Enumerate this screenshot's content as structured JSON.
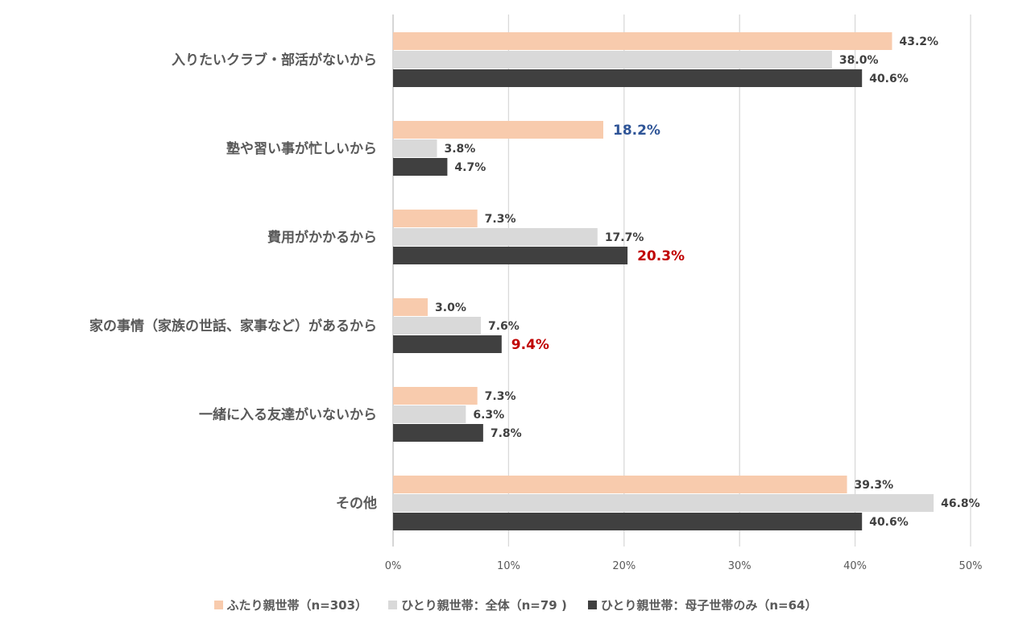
{
  "chart_data": {
    "type": "bar",
    "orientation": "horizontal",
    "categories": [
      "入りたいクラブ・部活がないから",
      "塾や習い事が忙しいから",
      "費用がかかるから",
      "家の事情（家族の世話、家事など）があるから",
      "一緒に入る友達がいないから",
      "その他"
    ],
    "series": [
      {
        "name": "ふたり親世帯（n=303）",
        "color": "#F8CBAD",
        "values": [
          43.2,
          18.2,
          7.3,
          3.0,
          7.3,
          39.3
        ],
        "labels": [
          "43.2%",
          "18.2%",
          "7.3%",
          "3.0%",
          "7.3%",
          "39.3%"
        ]
      },
      {
        "name": "ひとり親世帯：全体（n=79 )",
        "color": "#D9D9D9",
        "values": [
          38.0,
          3.8,
          17.7,
          7.6,
          6.3,
          46.8
        ],
        "labels": [
          "38.0%",
          "3.8%",
          "17.7%",
          "7.6%",
          "6.3%",
          "46.8%"
        ]
      },
      {
        "name": "ひとり親世帯：母子世帯のみ（n=64）",
        "color": "#404040",
        "values": [
          40.6,
          4.7,
          20.3,
          9.4,
          7.8,
          40.6
        ],
        "labels": [
          "40.6%",
          "4.7%",
          "20.3%",
          "9.4%",
          "7.8%",
          "40.6%"
        ]
      }
    ],
    "highlighted_labels": [
      {
        "series": 0,
        "index": 1,
        "color": "#2F5597"
      },
      {
        "series": 2,
        "index": 2,
        "color": "#C00000"
      },
      {
        "series": 2,
        "index": 3,
        "color": "#C00000"
      }
    ],
    "xlim": [
      0,
      50
    ],
    "xticks": [
      "0%",
      "10%",
      "20%",
      "30%",
      "40%",
      "50%"
    ],
    "grid": true,
    "legend_position": "bottom"
  }
}
